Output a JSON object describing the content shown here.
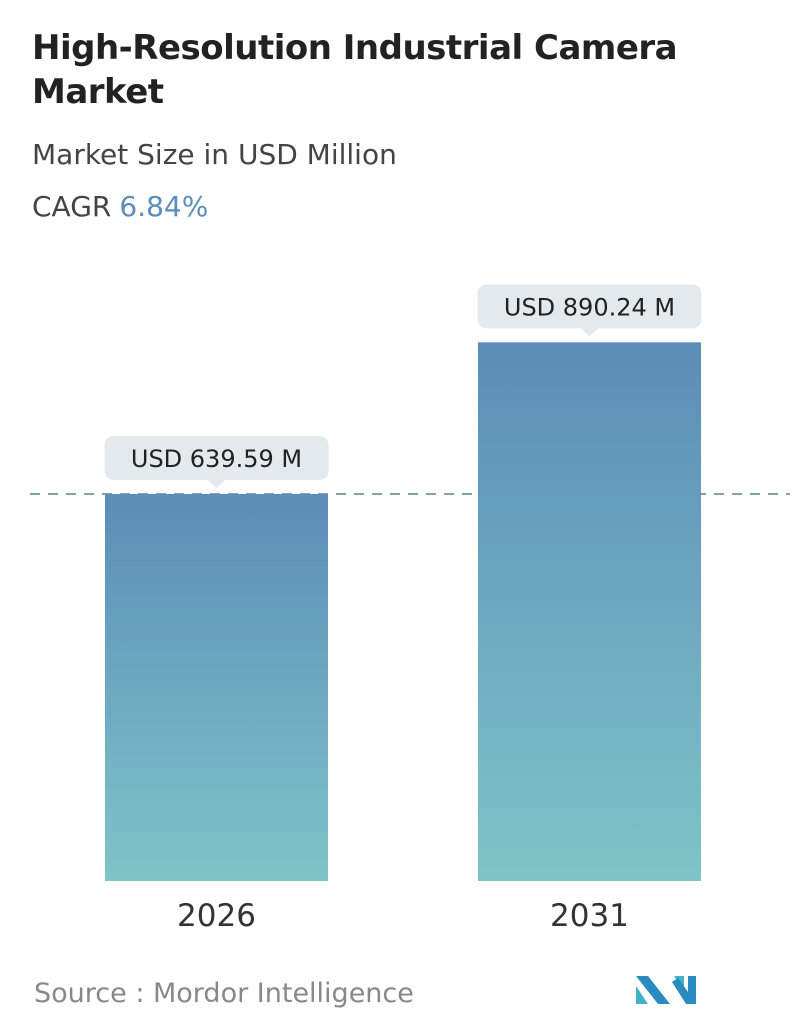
{
  "title": "High-Resolution Industrial Camera Market",
  "subtitle": "Market Size in USD Million",
  "cagr_label": "CAGR",
  "cagr_value": "6.84%",
  "source": "Source :  Mordor Intelligence",
  "logo_text": "Mordor Intelligence",
  "colors": {
    "bar_top": "#5b8db8",
    "bar_bottom": "#7fc4c8",
    "cagr": "#5b8db8",
    "label_bg": "#e3e9ec"
  },
  "chart_data": {
    "type": "bar",
    "categories": [
      "2026",
      "2031"
    ],
    "values": [
      639.59,
      890.24
    ],
    "data_labels": [
      "USD 639.59 M",
      "USD 890.24 M"
    ],
    "reference_line": 639.59,
    "title": "High-Resolution Industrial Camera Market",
    "xlabel": "",
    "ylabel": "",
    "grid": false
  }
}
